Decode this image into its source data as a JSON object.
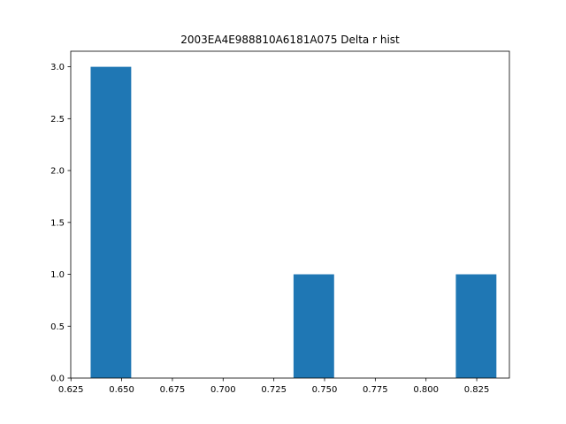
{
  "chart_data": {
    "type": "bar",
    "title": "2003EA4E988810A6181A075 Delta r hist",
    "xlabel": "",
    "ylabel": "",
    "xlim": [
      0.6249,
      0.8411
    ],
    "ylim": [
      0,
      3.15
    ],
    "bar_color": "#1f77b4",
    "bins": [
      {
        "x0": 0.6347,
        "x1": 0.6547,
        "count": 3
      },
      {
        "x0": 0.6547,
        "x1": 0.6747,
        "count": 0
      },
      {
        "x0": 0.6747,
        "x1": 0.6947,
        "count": 0
      },
      {
        "x0": 0.6947,
        "x1": 0.7147,
        "count": 0
      },
      {
        "x0": 0.7147,
        "x1": 0.7347,
        "count": 0
      },
      {
        "x0": 0.7347,
        "x1": 0.7547,
        "count": 1
      },
      {
        "x0": 0.7547,
        "x1": 0.7747,
        "count": 0
      },
      {
        "x0": 0.7747,
        "x1": 0.7947,
        "count": 0
      },
      {
        "x0": 0.7947,
        "x1": 0.8147,
        "count": 0
      },
      {
        "x0": 0.8147,
        "x1": 0.8347,
        "count": 1
      }
    ],
    "x_ticks": [
      {
        "value": 0.625,
        "label": "0.625"
      },
      {
        "value": 0.65,
        "label": "0.650"
      },
      {
        "value": 0.675,
        "label": "0.675"
      },
      {
        "value": 0.7,
        "label": "0.700"
      },
      {
        "value": 0.725,
        "label": "0.725"
      },
      {
        "value": 0.75,
        "label": "0.750"
      },
      {
        "value": 0.775,
        "label": "0.775"
      },
      {
        "value": 0.8,
        "label": "0.800"
      },
      {
        "value": 0.825,
        "label": "0.825"
      }
    ],
    "y_ticks": [
      {
        "value": 0.0,
        "label": "0.0"
      },
      {
        "value": 0.5,
        "label": "0.5"
      },
      {
        "value": 1.0,
        "label": "1.0"
      },
      {
        "value": 1.5,
        "label": "1.5"
      },
      {
        "value": 2.0,
        "label": "2.0"
      },
      {
        "value": 2.5,
        "label": "2.5"
      },
      {
        "value": 3.0,
        "label": "3.0"
      }
    ],
    "grid": false,
    "legend": "none"
  }
}
